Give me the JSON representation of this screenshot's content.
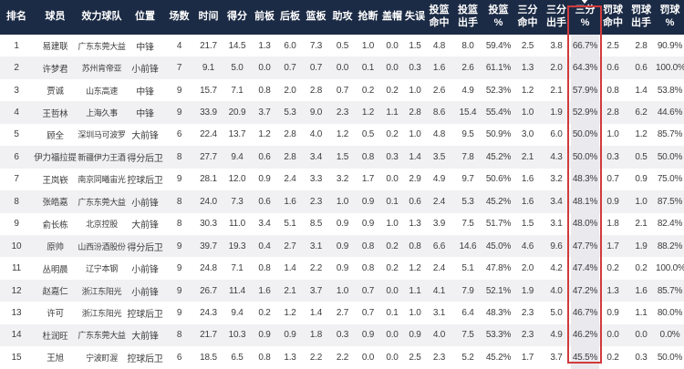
{
  "table": {
    "columns": [
      "排名",
      "球员",
      "效力球队",
      "位置",
      "场数",
      "时间",
      "得分",
      "前板",
      "后板",
      "篮板",
      "助攻",
      "抢断",
      "盖帽",
      "失误",
      "投篮\n命中",
      "投篮\n出手",
      "投篮\n%",
      "三分\n命中",
      "三分\n出手",
      "三分\n%",
      "罚球\n命中",
      "罚球\n出手",
      "罚球\n%"
    ],
    "highlight": {
      "column_label": "三分%",
      "col_index": 19,
      "sort_icon": "sort-desc",
      "border_color": "#d23a3c",
      "cell_bg": "#e9e9ee"
    },
    "rows": [
      [
        "1",
        "易建联",
        "广东东莞大益",
        "中锋",
        "4",
        "21.7",
        "14.5",
        "1.3",
        "6.0",
        "7.3",
        "0.5",
        "1.0",
        "0.0",
        "1.5",
        "4.8",
        "8.0",
        "59.4%",
        "2.5",
        "3.8",
        "66.7%",
        "2.5",
        "2.8",
        "90.9%"
      ],
      [
        "2",
        "许梦君",
        "苏州肯帝亚",
        "小前锋",
        "7",
        "9.1",
        "5.0",
        "0.0",
        "0.7",
        "0.7",
        "0.0",
        "0.1",
        "0.0",
        "0.3",
        "1.6",
        "2.6",
        "61.1%",
        "1.3",
        "2.0",
        "64.3%",
        "0.6",
        "0.6",
        "100.0%"
      ],
      [
        "3",
        "贾诚",
        "山东高速",
        "中锋",
        "9",
        "15.7",
        "7.1",
        "0.8",
        "2.0",
        "2.8",
        "0.7",
        "0.2",
        "0.2",
        "1.0",
        "2.6",
        "4.9",
        "52.3%",
        "1.2",
        "2.1",
        "57.9%",
        "0.8",
        "1.4",
        "53.8%"
      ],
      [
        "4",
        "王哲林",
        "上海久事",
        "中锋",
        "9",
        "33.9",
        "20.9",
        "3.7",
        "5.3",
        "9.0",
        "2.3",
        "1.2",
        "1.1",
        "2.8",
        "8.6",
        "15.4",
        "55.4%",
        "1.0",
        "1.9",
        "52.9%",
        "2.8",
        "6.2",
        "44.6%"
      ],
      [
        "5",
        "顾全",
        "深圳马可波罗",
        "大前锋",
        "6",
        "22.4",
        "13.7",
        "1.2",
        "2.8",
        "4.0",
        "1.2",
        "0.5",
        "0.2",
        "1.0",
        "4.8",
        "9.5",
        "50.9%",
        "3.0",
        "6.0",
        "50.0%",
        "1.0",
        "1.2",
        "85.7%"
      ],
      [
        "6",
        "伊力福拉提",
        "新疆伊力王酒",
        "得分后卫",
        "8",
        "27.7",
        "9.4",
        "0.6",
        "2.8",
        "3.4",
        "1.5",
        "0.8",
        "0.3",
        "1.4",
        "3.5",
        "7.8",
        "45.2%",
        "2.1",
        "4.3",
        "50.0%",
        "0.3",
        "0.5",
        "50.0%"
      ],
      [
        "7",
        "王岚嵚",
        "南京同曦宙光",
        "控球后卫",
        "9",
        "28.1",
        "12.0",
        "0.9",
        "2.4",
        "3.3",
        "3.2",
        "1.7",
        "0.0",
        "2.9",
        "4.9",
        "9.7",
        "50.6%",
        "1.6",
        "3.2",
        "48.3%",
        "0.7",
        "0.9",
        "75.0%"
      ],
      [
        "8",
        "张皓嘉",
        "广东东莞大益",
        "小前锋",
        "8",
        "24.0",
        "7.3",
        "0.6",
        "1.6",
        "2.3",
        "1.0",
        "0.9",
        "0.1",
        "0.6",
        "2.4",
        "5.3",
        "45.2%",
        "1.6",
        "3.4",
        "48.1%",
        "0.9",
        "1.0",
        "87.5%"
      ],
      [
        "9",
        "俞长栋",
        "北京控股",
        "大前锋",
        "8",
        "30.3",
        "11.0",
        "3.4",
        "5.1",
        "8.5",
        "0.9",
        "0.9",
        "1.0",
        "1.3",
        "3.9",
        "7.5",
        "51.7%",
        "1.5",
        "3.1",
        "48.0%",
        "1.8",
        "2.1",
        "82.4%"
      ],
      [
        "10",
        "原帅",
        "山西汾酒股份",
        "得分后卫",
        "9",
        "39.7",
        "19.3",
        "0.4",
        "2.7",
        "3.1",
        "0.9",
        "0.8",
        "0.2",
        "0.8",
        "6.6",
        "14.6",
        "45.0%",
        "4.6",
        "9.6",
        "47.7%",
        "1.7",
        "1.9",
        "88.2%"
      ],
      [
        "11",
        "丛明晨",
        "辽宁本钢",
        "小前锋",
        "9",
        "24.8",
        "7.1",
        "0.8",
        "1.4",
        "2.2",
        "0.9",
        "0.8",
        "0.2",
        "1.2",
        "2.4",
        "5.1",
        "47.8%",
        "2.0",
        "4.2",
        "47.4%",
        "0.2",
        "0.2",
        "100.0%"
      ],
      [
        "12",
        "赵嘉仁",
        "浙江东阳光",
        "小前锋",
        "9",
        "26.7",
        "11.4",
        "1.6",
        "2.1",
        "3.7",
        "1.0",
        "0.7",
        "0.0",
        "1.1",
        "4.1",
        "7.9",
        "52.1%",
        "1.9",
        "4.0",
        "47.2%",
        "1.3",
        "1.6",
        "85.7%"
      ],
      [
        "13",
        "许可",
        "浙江东阳光",
        "控球后卫",
        "9",
        "24.3",
        "9.4",
        "0.2",
        "1.2",
        "1.4",
        "2.7",
        "0.7",
        "0.1",
        "1.0",
        "3.1",
        "6.4",
        "48.3%",
        "2.3",
        "5.0",
        "46.7%",
        "0.9",
        "1.1",
        "80.0%"
      ],
      [
        "14",
        "杜润旺",
        "广东东莞大益",
        "大前锋",
        "8",
        "21.7",
        "10.3",
        "0.9",
        "0.9",
        "1.8",
        "0.3",
        "0.9",
        "0.0",
        "0.9",
        "4.0",
        "7.5",
        "53.3%",
        "2.3",
        "4.9",
        "46.2%",
        "0.0",
        "0.0",
        "0.0%"
      ],
      [
        "15",
        "王旭",
        "宁波町渥",
        "控球后卫",
        "6",
        "18.5",
        "6.5",
        "0.8",
        "1.3",
        "2.2",
        "2.2",
        "0.0",
        "0.0",
        "2.5",
        "2.3",
        "5.2",
        "45.2%",
        "1.7",
        "3.7",
        "45.5%",
        "0.2",
        "0.3",
        "50.0%"
      ]
    ]
  },
  "colors": {
    "header_bg": "#1c2b45",
    "header_text": "#ffffff",
    "row_bg": "#ffffff",
    "row_alt_bg": "#f1f1f3",
    "body_text": "#3d3d3d"
  }
}
